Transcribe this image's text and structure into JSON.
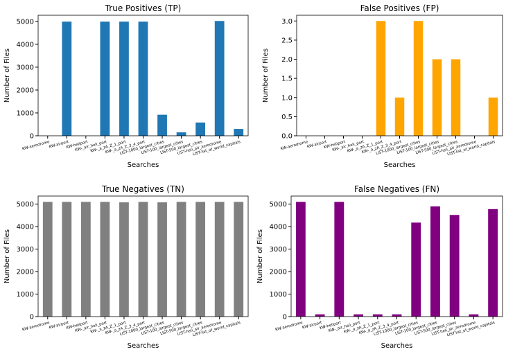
{
  "chart_data": [
    {
      "type": "bar",
      "title": "True Positives (TP)",
      "xlabel": "Searches",
      "ylabel": "Number of Files",
      "color": "#1f77b4",
      "categories": [
        "KW-aerodrome",
        "KW-airport",
        "KW-heliport",
        "KW-_air_heli_port",
        "KW-_a_zA_Z_1_port",
        "KW-_a_zA_Z_3_4_port",
        "LIST-1000_largest_cities",
        "LIST-100_largest_cities",
        "LIST-500_largest_cities",
        "LIST-heli_air_aerodrome",
        "LIST-list_of_world_capitals"
      ],
      "values": [
        0,
        4990,
        0,
        4990,
        4990,
        4990,
        920,
        150,
        580,
        5020,
        300
      ],
      "ylim": [
        0,
        5270
      ],
      "yticks": [
        0,
        1000,
        2000,
        3000,
        4000,
        5000
      ]
    },
    {
      "type": "bar",
      "title": "False Positives (FP)",
      "xlabel": "Searches",
      "ylabel": "Number of Files",
      "color": "#ffa500",
      "categories": [
        "KW-aerodrome",
        "KW-airport",
        "KW-heliport",
        "KW-_air_heli_port",
        "KW-_a_zA_Z_1_port",
        "KW-_a_zA_Z_3_4_port",
        "LIST-1000_largest_cities",
        "LIST-100_largest_cities",
        "LIST-500_largest_cities",
        "LIST-heli_air_aerodrome",
        "LIST-list_of_world_capitals"
      ],
      "values": [
        0,
        0,
        0,
        0,
        3,
        1,
        3,
        2,
        2,
        0,
        1
      ],
      "ylim": [
        0,
        3.15
      ],
      "yticks": [
        {
          "value": 0,
          "label": "0.0"
        },
        0.5,
        {
          "value": 1,
          "label": "1.0"
        },
        1.5,
        {
          "value": 2,
          "label": "2.0"
        },
        2.5,
        {
          "value": 3,
          "label": "3.0"
        }
      ]
    },
    {
      "type": "bar",
      "title": "True Negatives (TN)",
      "xlabel": "Searches",
      "ylabel": "Number of Files",
      "color": "#808080",
      "categories": [
        "KW-aerodrome",
        "KW-airport",
        "KW-heliport",
        "KW-_air_heli_port",
        "KW-_a_zA_Z_1_port",
        "KW-_a_zA_Z_3_4_port",
        "LIST-1000_largest_cities",
        "LIST-100_largest_cities",
        "LIST-500_largest_cities",
        "LIST-heli_air_aerodrome",
        "LIST-list_of_world_capitals"
      ],
      "values": [
        5100,
        5100,
        5100,
        5100,
        5080,
        5100,
        5080,
        5100,
        5100,
        5100,
        5100
      ],
      "ylim": [
        0,
        5360
      ],
      "yticks": [
        0,
        1000,
        2000,
        3000,
        4000,
        5000
      ]
    },
    {
      "type": "bar",
      "title": "False Negatives (FN)",
      "xlabel": "Searches",
      "ylabel": "Number of Files",
      "color": "#800080",
      "categories": [
        "KW-aerodrome",
        "KW-airport",
        "KW-heliport",
        "KW-_air_heli_port",
        "KW-_a_zA_Z_1_port",
        "KW-_a_zA_Z_3_4_port",
        "LIST-1000_largest_cities",
        "LIST-100_largest_cities",
        "LIST-500_largest_cities",
        "LIST-heli_air_aerodrome",
        "LIST-list_of_world_capitals"
      ],
      "values": [
        5100,
        100,
        5100,
        100,
        100,
        100,
        4180,
        4900,
        4520,
        100,
        4780
      ],
      "ylim": [
        0,
        5360
      ],
      "yticks": [
        0,
        1000,
        2000,
        3000,
        4000,
        5000
      ]
    }
  ]
}
